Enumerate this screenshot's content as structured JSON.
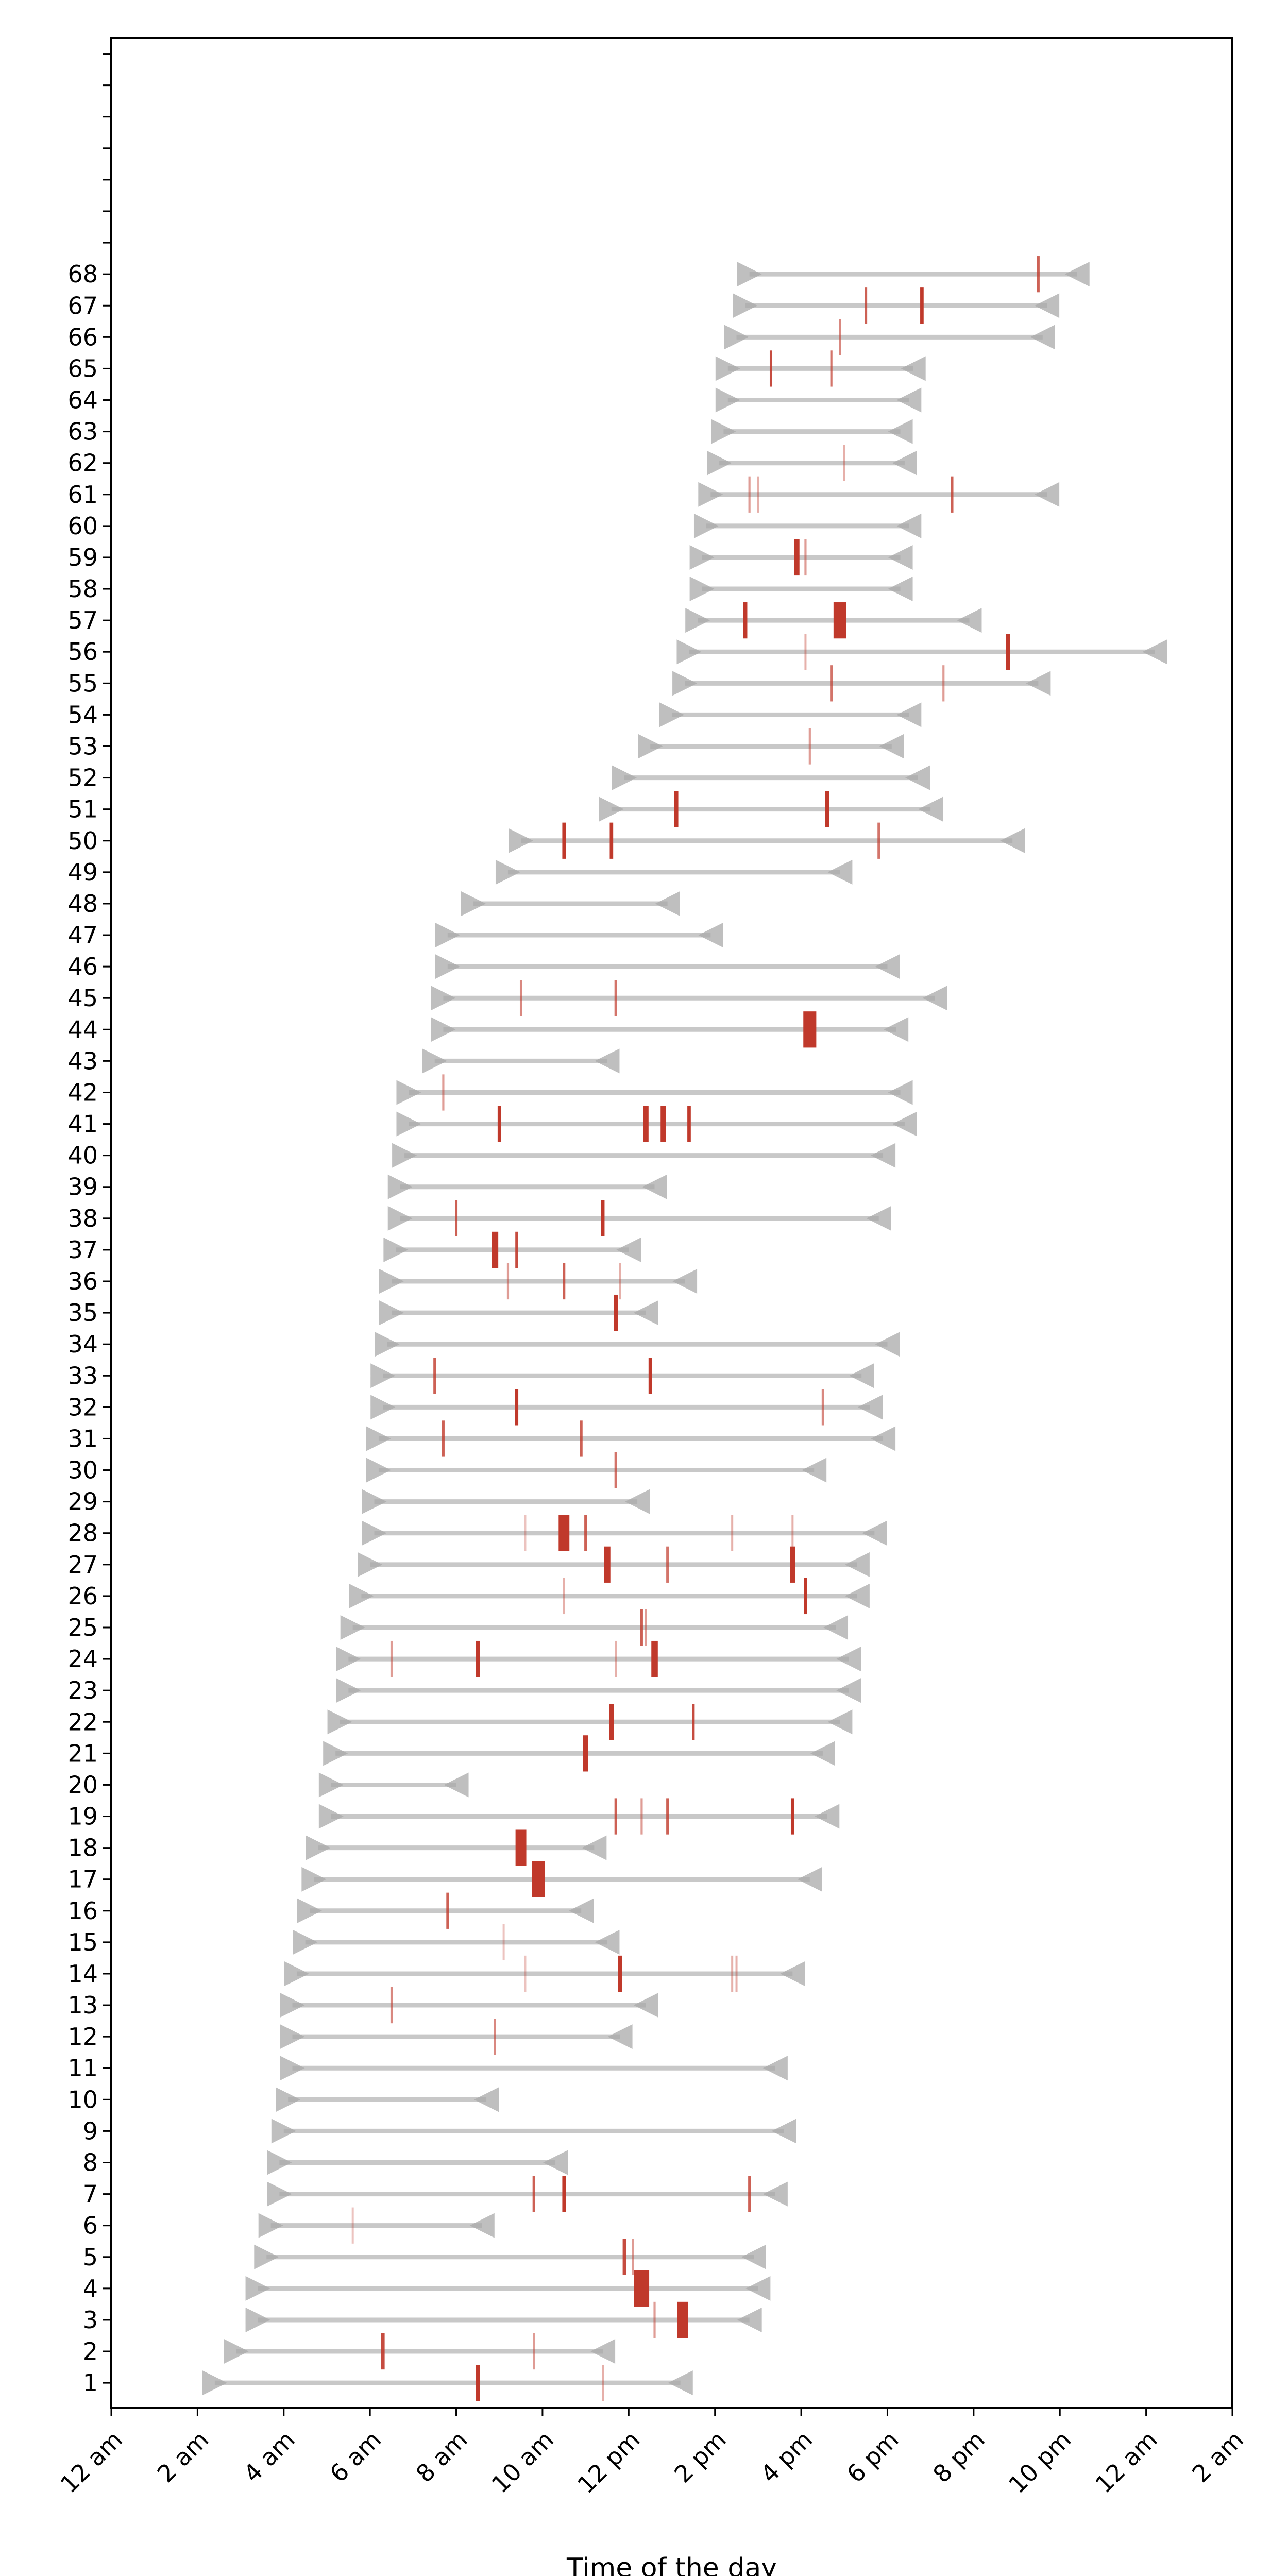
{
  "chart_data": {
    "type": "timeline",
    "xlabel": "Time of the day",
    "ylabel": "",
    "title": "",
    "xlim": [
      0,
      26
    ],
    "x_ticks": [
      {
        "value": 0,
        "label": "12 am"
      },
      {
        "value": 2,
        "label": "2 am"
      },
      {
        "value": 4,
        "label": "4 am"
      },
      {
        "value": 6,
        "label": "6 am"
      },
      {
        "value": 8,
        "label": "8 am"
      },
      {
        "value": 10,
        "label": "10 am"
      },
      {
        "value": 12,
        "label": "12 pm"
      },
      {
        "value": 14,
        "label": "2 pm"
      },
      {
        "value": 16,
        "label": "4 pm"
      },
      {
        "value": 18,
        "label": "6 pm"
      },
      {
        "value": 20,
        "label": "8 pm"
      },
      {
        "value": 22,
        "label": "10 pm"
      },
      {
        "value": 24,
        "label": "12 am"
      },
      {
        "value": 26,
        "label": "2 am"
      }
    ],
    "ylim": [
      0.2,
      75.5
    ],
    "y_tick_max": 75,
    "colors": {
      "span": "#c8c8c8",
      "marker": "#a9a9a9",
      "event": "#c0392b"
    },
    "rows": [
      {
        "id": 1,
        "label": "1",
        "start": 2.4,
        "end": 13.2,
        "events": [
          [
            8.5,
            0.1,
            1.0
          ],
          [
            11.4,
            0.04,
            0.4
          ]
        ]
      },
      {
        "id": 2,
        "label": "2",
        "start": 2.9,
        "end": 11.4,
        "events": [
          [
            6.3,
            0.08,
            0.9
          ],
          [
            9.8,
            0.05,
            0.5
          ]
        ]
      },
      {
        "id": 3,
        "label": "3",
        "start": 3.4,
        "end": 14.8,
        "events": [
          [
            12.6,
            0.05,
            0.5
          ],
          [
            13.25,
            0.25,
            1.0
          ]
        ]
      },
      {
        "id": 4,
        "label": "4",
        "start": 3.4,
        "end": 15.0,
        "events": [
          [
            12.3,
            0.35,
            1.0
          ]
        ]
      },
      {
        "id": 5,
        "label": "5",
        "start": 3.6,
        "end": 14.9,
        "events": [
          [
            11.9,
            0.08,
            0.9
          ],
          [
            12.1,
            0.05,
            0.5
          ]
        ]
      },
      {
        "id": 6,
        "label": "6",
        "start": 3.7,
        "end": 8.6,
        "events": [
          [
            5.6,
            0.04,
            0.3
          ]
        ]
      },
      {
        "id": 7,
        "label": "7",
        "start": 3.9,
        "end": 15.4,
        "events": [
          [
            9.8,
            0.06,
            0.8
          ],
          [
            10.5,
            0.08,
            1.0
          ],
          [
            14.8,
            0.06,
            0.8
          ]
        ]
      },
      {
        "id": 8,
        "label": "8",
        "start": 3.9,
        "end": 10.3,
        "events": []
      },
      {
        "id": 9,
        "label": "9",
        "start": 4.0,
        "end": 15.6,
        "events": []
      },
      {
        "id": 10,
        "label": "10",
        "start": 4.1,
        "end": 8.7,
        "events": []
      },
      {
        "id": 11,
        "label": "11",
        "start": 4.2,
        "end": 15.4,
        "events": []
      },
      {
        "id": 12,
        "label": "12",
        "start": 4.2,
        "end": 11.8,
        "events": [
          [
            8.9,
            0.05,
            0.6
          ]
        ]
      },
      {
        "id": 13,
        "label": "13",
        "start": 4.2,
        "end": 12.4,
        "events": [
          [
            6.5,
            0.05,
            0.6
          ]
        ]
      },
      {
        "id": 14,
        "label": "14",
        "start": 4.3,
        "end": 15.8,
        "events": [
          [
            9.6,
            0.04,
            0.3
          ],
          [
            11.8,
            0.1,
            1.0
          ],
          [
            14.4,
            0.04,
            0.4
          ],
          [
            14.5,
            0.04,
            0.4
          ]
        ]
      },
      {
        "id": 15,
        "label": "15",
        "start": 4.5,
        "end": 11.5,
        "events": [
          [
            9.1,
            0.04,
            0.3
          ]
        ]
      },
      {
        "id": 16,
        "label": "16",
        "start": 4.6,
        "end": 10.9,
        "events": [
          [
            7.8,
            0.06,
            0.8
          ]
        ]
      },
      {
        "id": 17,
        "label": "17",
        "start": 4.7,
        "end": 16.2,
        "events": [
          [
            9.9,
            0.3,
            1.0
          ]
        ]
      },
      {
        "id": 18,
        "label": "18",
        "start": 4.8,
        "end": 11.2,
        "events": [
          [
            9.5,
            0.25,
            1.0
          ]
        ]
      },
      {
        "id": 19,
        "label": "19",
        "start": 5.1,
        "end": 16.6,
        "events": [
          [
            11.7,
            0.06,
            0.8
          ],
          [
            12.3,
            0.05,
            0.5
          ],
          [
            12.9,
            0.06,
            0.8
          ],
          [
            15.8,
            0.08,
            1.0
          ]
        ]
      },
      {
        "id": 20,
        "label": "20",
        "start": 5.1,
        "end": 8.0,
        "events": []
      },
      {
        "id": 21,
        "label": "21",
        "start": 5.2,
        "end": 16.5,
        "events": [
          [
            11.0,
            0.12,
            1.0
          ]
        ]
      },
      {
        "id": 22,
        "label": "22",
        "start": 5.3,
        "end": 16.9,
        "events": [
          [
            11.6,
            0.1,
            1.0
          ],
          [
            13.5,
            0.06,
            0.9
          ]
        ]
      },
      {
        "id": 23,
        "label": "23",
        "start": 5.5,
        "end": 17.1,
        "events": []
      },
      {
        "id": 24,
        "label": "24",
        "start": 5.5,
        "end": 17.1,
        "events": [
          [
            6.5,
            0.05,
            0.5
          ],
          [
            8.5,
            0.1,
            1.0
          ],
          [
            11.7,
            0.05,
            0.4
          ],
          [
            12.6,
            0.15,
            1.0
          ]
        ]
      },
      {
        "id": 25,
        "label": "25",
        "start": 5.6,
        "end": 16.8,
        "events": [
          [
            12.3,
            0.06,
            0.8
          ],
          [
            12.4,
            0.05,
            0.5
          ]
        ]
      },
      {
        "id": 26,
        "label": "26",
        "start": 5.8,
        "end": 17.3,
        "events": [
          [
            10.5,
            0.04,
            0.4
          ],
          [
            16.1,
            0.08,
            1.0
          ]
        ]
      },
      {
        "id": 27,
        "label": "27",
        "start": 6.0,
        "end": 17.3,
        "events": [
          [
            11.5,
            0.15,
            1.0
          ],
          [
            12.9,
            0.06,
            0.7
          ],
          [
            15.8,
            0.12,
            1.0
          ]
        ]
      },
      {
        "id": 28,
        "label": "28",
        "start": 6.1,
        "end": 17.7,
        "events": [
          [
            9.6,
            0.04,
            0.3
          ],
          [
            10.5,
            0.25,
            1.0
          ],
          [
            11.0,
            0.06,
            0.8
          ],
          [
            14.4,
            0.04,
            0.4
          ],
          [
            15.8,
            0.04,
            0.4
          ]
        ]
      },
      {
        "id": 29,
        "label": "29",
        "start": 6.1,
        "end": 12.2,
        "events": []
      },
      {
        "id": 30,
        "label": "30",
        "start": 6.2,
        "end": 16.3,
        "events": [
          [
            11.7,
            0.06,
            0.7
          ]
        ]
      },
      {
        "id": 31,
        "label": "31",
        "start": 6.2,
        "end": 17.9,
        "events": [
          [
            7.7,
            0.06,
            0.8
          ],
          [
            10.9,
            0.06,
            0.8
          ]
        ]
      },
      {
        "id": 32,
        "label": "32",
        "start": 6.3,
        "end": 17.6,
        "events": [
          [
            9.4,
            0.08,
            1.0
          ],
          [
            16.5,
            0.05,
            0.6
          ]
        ]
      },
      {
        "id": 33,
        "label": "33",
        "start": 6.3,
        "end": 17.4,
        "events": [
          [
            7.5,
            0.06,
            0.8
          ],
          [
            12.5,
            0.08,
            1.0
          ]
        ]
      },
      {
        "id": 34,
        "label": "34",
        "start": 6.4,
        "end": 18.0,
        "events": []
      },
      {
        "id": 35,
        "label": "35",
        "start": 6.5,
        "end": 12.4,
        "events": [
          [
            11.7,
            0.1,
            1.0
          ]
        ]
      },
      {
        "id": 36,
        "label": "36",
        "start": 6.5,
        "end": 13.3,
        "events": [
          [
            9.2,
            0.05,
            0.5
          ],
          [
            10.5,
            0.06,
            0.8
          ],
          [
            11.8,
            0.04,
            0.4
          ]
        ]
      },
      {
        "id": 37,
        "label": "37",
        "start": 6.6,
        "end": 12.0,
        "events": [
          [
            8.9,
            0.15,
            1.0
          ],
          [
            9.4,
            0.06,
            0.9
          ]
        ]
      },
      {
        "id": 38,
        "label": "38",
        "start": 6.7,
        "end": 17.8,
        "events": [
          [
            8.0,
            0.06,
            0.8
          ],
          [
            11.4,
            0.08,
            1.0
          ]
        ]
      },
      {
        "id": 39,
        "label": "39",
        "start": 6.7,
        "end": 12.6,
        "events": []
      },
      {
        "id": 40,
        "label": "40",
        "start": 6.8,
        "end": 17.9,
        "events": []
      },
      {
        "id": 41,
        "label": "41",
        "start": 6.9,
        "end": 18.4,
        "events": [
          [
            9.0,
            0.08,
            1.0
          ],
          [
            12.4,
            0.12,
            1.0
          ],
          [
            12.8,
            0.12,
            1.0
          ],
          [
            13.4,
            0.08,
            1.0
          ]
        ]
      },
      {
        "id": 42,
        "label": "42",
        "start": 6.9,
        "end": 18.3,
        "events": [
          [
            7.7,
            0.05,
            0.5
          ]
        ]
      },
      {
        "id": 43,
        "label": "43",
        "start": 7.5,
        "end": 11.5,
        "events": []
      },
      {
        "id": 44,
        "label": "44",
        "start": 7.7,
        "end": 18.2,
        "events": [
          [
            16.2,
            0.3,
            1.0
          ]
        ]
      },
      {
        "id": 45,
        "label": "45",
        "start": 7.7,
        "end": 19.1,
        "events": [
          [
            9.5,
            0.05,
            0.6
          ],
          [
            11.7,
            0.06,
            0.7
          ]
        ]
      },
      {
        "id": 46,
        "label": "46",
        "start": 7.8,
        "end": 18.0,
        "events": []
      },
      {
        "id": 47,
        "label": "47",
        "start": 7.8,
        "end": 13.9,
        "events": []
      },
      {
        "id": 48,
        "label": "48",
        "start": 8.4,
        "end": 12.9,
        "events": []
      },
      {
        "id": 49,
        "label": "49",
        "start": 9.2,
        "end": 16.9,
        "events": []
      },
      {
        "id": 50,
        "label": "50",
        "start": 9.5,
        "end": 20.9,
        "events": [
          [
            10.5,
            0.08,
            1.0
          ],
          [
            11.6,
            0.08,
            1.0
          ],
          [
            17.8,
            0.06,
            0.7
          ]
        ]
      },
      {
        "id": 51,
        "label": "51",
        "start": 11.6,
        "end": 19.0,
        "events": [
          [
            13.1,
            0.1,
            1.0
          ],
          [
            16.6,
            0.1,
            1.0
          ]
        ]
      },
      {
        "id": 52,
        "label": "52",
        "start": 11.9,
        "end": 18.7,
        "events": []
      },
      {
        "id": 53,
        "label": "53",
        "start": 12.5,
        "end": 18.1,
        "events": [
          [
            16.2,
            0.05,
            0.5
          ]
        ]
      },
      {
        "id": 54,
        "label": "54",
        "start": 13.0,
        "end": 18.5,
        "events": []
      },
      {
        "id": 55,
        "label": "55",
        "start": 13.3,
        "end": 21.5,
        "events": [
          [
            16.7,
            0.06,
            0.7
          ],
          [
            19.3,
            0.05,
            0.5
          ]
        ]
      },
      {
        "id": 56,
        "label": "56",
        "start": 13.4,
        "end": 24.2,
        "events": [
          [
            16.1,
            0.04,
            0.4
          ],
          [
            20.8,
            0.1,
            1.0
          ]
        ]
      },
      {
        "id": 57,
        "label": "57",
        "start": 13.6,
        "end": 19.9,
        "events": [
          [
            14.7,
            0.1,
            1.0
          ],
          [
            16.9,
            0.3,
            1.0
          ]
        ]
      },
      {
        "id": 58,
        "label": "58",
        "start": 13.7,
        "end": 18.3,
        "events": []
      },
      {
        "id": 59,
        "label": "59",
        "start": 13.7,
        "end": 18.3,
        "events": [
          [
            15.9,
            0.12,
            1.0
          ],
          [
            16.1,
            0.05,
            0.5
          ]
        ]
      },
      {
        "id": 60,
        "label": "60",
        "start": 13.8,
        "end": 18.5,
        "events": []
      },
      {
        "id": 61,
        "label": "61",
        "start": 13.9,
        "end": 21.7,
        "events": [
          [
            14.8,
            0.05,
            0.5
          ],
          [
            15.0,
            0.04,
            0.4
          ],
          [
            19.5,
            0.06,
            0.8
          ]
        ]
      },
      {
        "id": 62,
        "label": "62",
        "start": 14.1,
        "end": 18.4,
        "events": [
          [
            17.0,
            0.04,
            0.4
          ]
        ]
      },
      {
        "id": 63,
        "label": "63",
        "start": 14.2,
        "end": 18.3,
        "events": []
      },
      {
        "id": 64,
        "label": "64",
        "start": 14.3,
        "end": 18.5,
        "events": []
      },
      {
        "id": 65,
        "label": "65",
        "start": 14.3,
        "end": 18.6,
        "events": [
          [
            15.3,
            0.06,
            0.9
          ],
          [
            16.7,
            0.05,
            0.7
          ]
        ]
      },
      {
        "id": 66,
        "label": "66",
        "start": 14.5,
        "end": 21.6,
        "events": [
          [
            16.9,
            0.05,
            0.6
          ]
        ]
      },
      {
        "id": 67,
        "label": "67",
        "start": 14.7,
        "end": 21.7,
        "events": [
          [
            17.5,
            0.06,
            0.8
          ],
          [
            18.8,
            0.08,
            1.0
          ]
        ]
      },
      {
        "id": 68,
        "label": "68",
        "start": 14.8,
        "end": 22.4,
        "events": [
          [
            21.5,
            0.06,
            0.8
          ]
        ]
      }
    ]
  }
}
